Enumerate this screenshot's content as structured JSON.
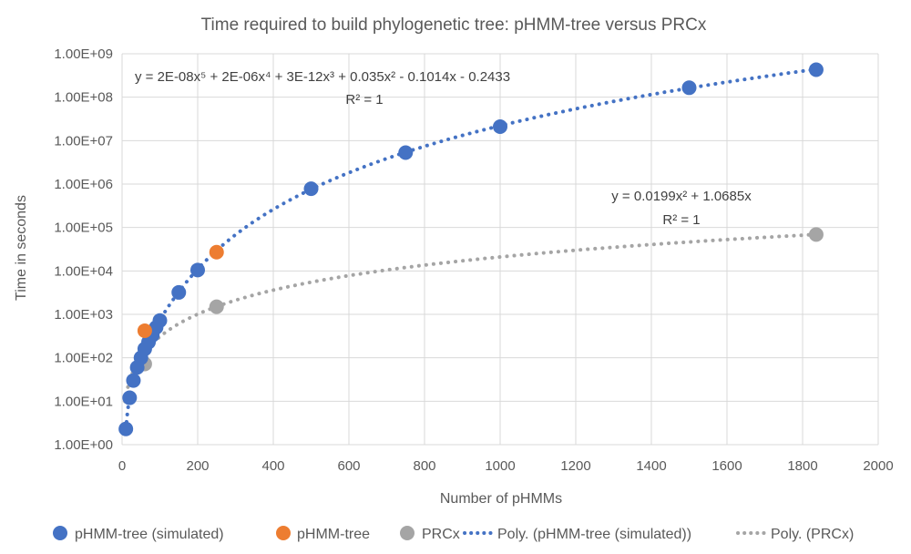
{
  "chart_data": {
    "type": "scatter",
    "title": "Time required to build phylogenetic tree: pHMM-tree versus PRCx",
    "xlabel": "Number of pHMMs",
    "ylabel": "Time in seconds",
    "xlim": [
      0,
      2000
    ],
    "x_ticks": [
      0,
      200,
      400,
      600,
      800,
      1000,
      1200,
      1400,
      1600,
      1800,
      2000
    ],
    "y_scale": "log",
    "ylim": [
      1,
      1000000000
    ],
    "y_tick_values": [
      1,
      10,
      100,
      1000,
      10000,
      100000,
      1000000,
      10000000,
      100000000,
      1000000000
    ],
    "y_tick_labels": [
      "1.00E+00",
      "1.00E+01",
      "1.00E+02",
      "1.00E+03",
      "1.00E+04",
      "1.00E+05",
      "1.00E+06",
      "1.00E+07",
      "1.00E+08",
      "1.00E+09"
    ],
    "grid": true,
    "legend_position": "bottom",
    "series": [
      {
        "name": "pHMM-tree (simulated)",
        "color": "#4472C4",
        "points": [
          [
            10,
            2.3
          ],
          [
            20,
            12
          ],
          [
            30,
            30
          ],
          [
            40,
            60
          ],
          [
            50,
            100
          ],
          [
            60,
            160
          ],
          [
            70,
            230
          ],
          [
            80,
            330
          ],
          [
            90,
            500
          ],
          [
            100,
            720
          ],
          [
            150,
            3200
          ],
          [
            200,
            10500
          ],
          [
            500,
            780000
          ],
          [
            750,
            5300000
          ],
          [
            1000,
            21000000
          ],
          [
            1500,
            165000000
          ],
          [
            1836,
            430000000
          ]
        ]
      },
      {
        "name": "pHMM-tree",
        "color": "#ED7D31",
        "points": [
          [
            60,
            420
          ],
          [
            250,
            27000
          ]
        ]
      },
      {
        "name": "PRCx",
        "color": "#A5A5A5",
        "points": [
          [
            60,
            72
          ],
          [
            250,
            1500
          ],
          [
            1836,
            69000
          ]
        ]
      }
    ],
    "trendlines": [
      {
        "name": "Poly. (pHMM-tree (simulated))",
        "color": "#4472C4",
        "type": "polynomial",
        "equation": "y = 2E-08x⁵ + 2E-06x⁴ + 3E-12x³ + 0.035x² - 0.1014x - 0.2433",
        "r2": "R² = 1",
        "coefficients": [
          2e-08,
          2e-06,
          3e-12,
          0.035,
          -0.1014,
          -0.2433
        ],
        "x_range": [
          10,
          1836
        ]
      },
      {
        "name": "Poly. (PRCx)",
        "color": "#A5A5A5",
        "type": "polynomial",
        "equation": "y = 0.0199x² + 1.0685x",
        "r2": "R² = 1",
        "coefficients": [
          0.0199,
          1.0685,
          0
        ],
        "x_range": [
          8,
          1836
        ]
      }
    ]
  }
}
